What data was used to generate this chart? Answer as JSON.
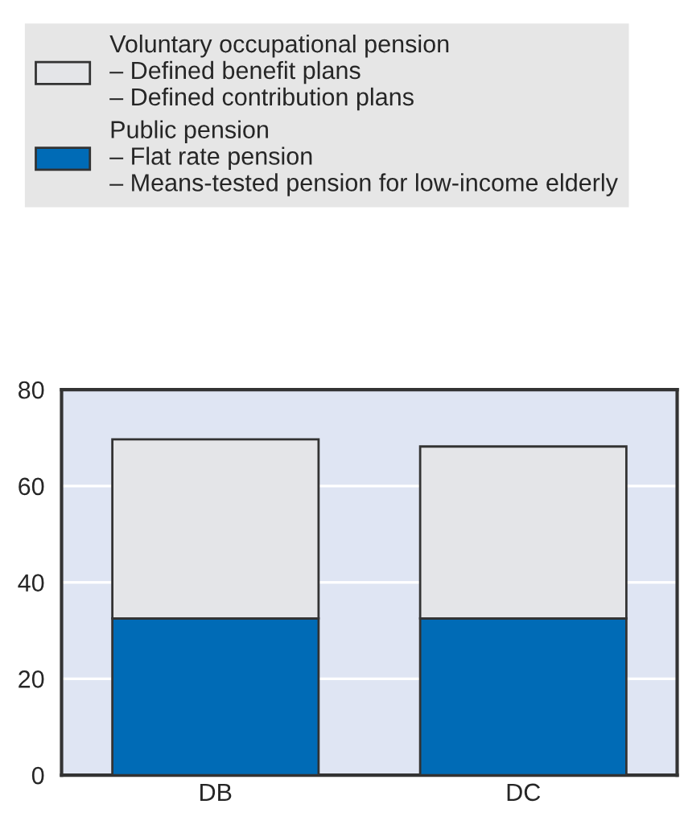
{
  "chart_data": {
    "type": "bar",
    "stacked": true,
    "categories": [
      "DB",
      "DC"
    ],
    "series": [
      {
        "name": "Public pension\n– Flat rate pension\n– Means-tested pension for low-income elderly",
        "color": "#006bb6",
        "values": [
          32.5,
          32.5
        ]
      },
      {
        "name": "Voluntary occupational pension\n– Defined benefit plans\n– Defined contribution plans",
        "color": "#e4e5e8",
        "values": [
          37.2,
          35.7
        ]
      }
    ],
    "ylim": [
      0,
      80
    ],
    "yticks": [
      0,
      20,
      40,
      60,
      80
    ],
    "grid": "y",
    "legend": "top"
  }
}
